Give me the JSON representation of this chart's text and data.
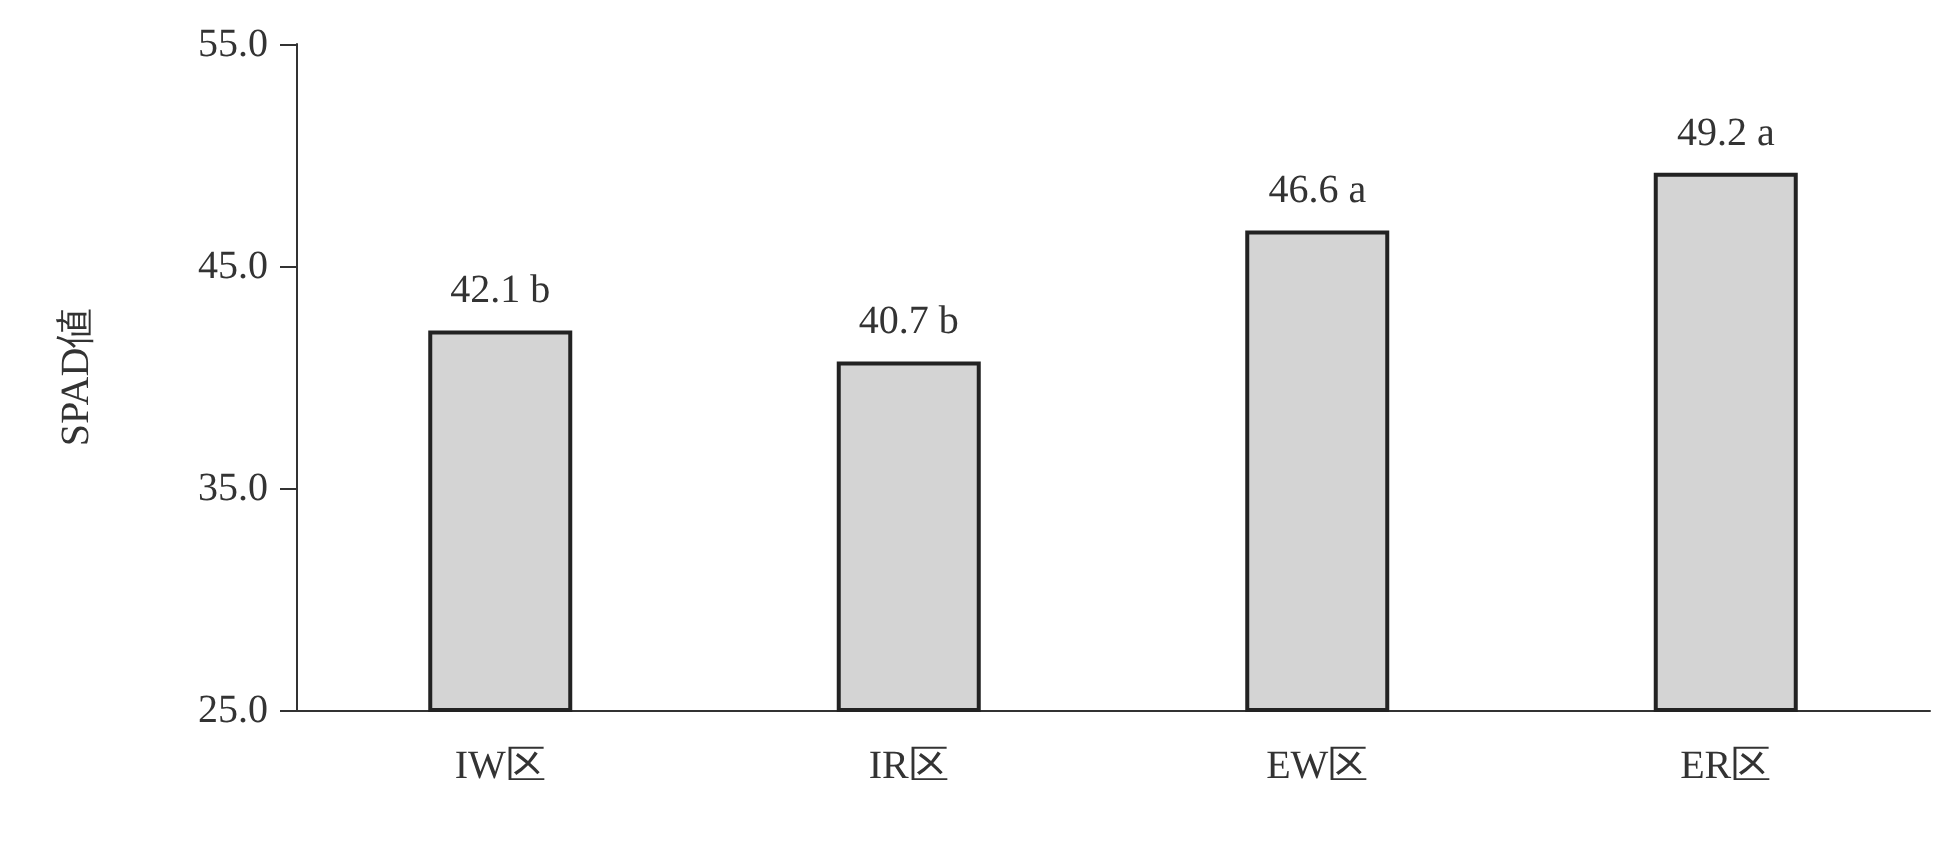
{
  "chart_data": {
    "type": "bar",
    "ylabel": "SPAD値",
    "categories": [
      "IW区",
      "IR区",
      "EW区",
      "ER区"
    ],
    "values": [
      42.1,
      40.7,
      46.6,
      49.2
    ],
    "color": "#d4d4d4",
    "value_labels": [
      "42.1 b",
      "40.7 b",
      "46.6 a",
      "49.2 a"
    ],
    "ylim": [
      25,
      55
    ],
    "yticks": [
      {
        "value": 25,
        "label": "25.0"
      },
      {
        "value": 35,
        "label": "35.0"
      },
      {
        "value": 45,
        "label": "45.0"
      },
      {
        "value": 55,
        "label": "55.0"
      }
    ],
    "grid": false
  }
}
